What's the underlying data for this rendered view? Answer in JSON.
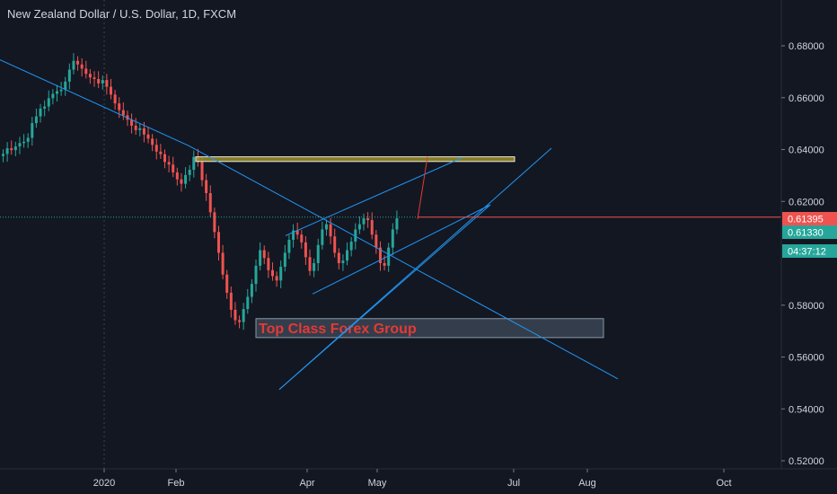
{
  "chart_title": "New Zealand Dollar / U.S. Dollar, 1D, FXCM",
  "chart_data": {
    "type": "candlestick",
    "symbol": "New Zealand Dollar / U.S. Dollar",
    "interval": "1D",
    "source": "FXCM",
    "y_ticks": [
      "0.68000",
      "0.66000",
      "0.64000",
      "0.62000",
      "0.58000",
      "0.56000",
      "0.54000",
      "0.52000"
    ],
    "x_ticks": [
      "2020",
      "Feb",
      "Apr",
      "May",
      "Jul",
      "Aug",
      "Oct"
    ],
    "ylim": [
      0.5165,
      0.6935
    ],
    "price_tags": [
      {
        "text": "0.61395",
        "value": 0.61395,
        "color": "#ef5350"
      },
      {
        "text": "0.61330",
        "value": 0.6133,
        "color": "#26a69a"
      },
      {
        "text": "04:37:12",
        "value": 0.6103,
        "color": "#26a69a"
      }
    ],
    "last_price": 0.61395,
    "resistance_zone": {
      "low": 0.6354,
      "high": 0.6372,
      "color": "#9e9122"
    },
    "support_zone": {
      "low": 0.5675,
      "high": 0.5748,
      "label": "Top Class Forex Group"
    },
    "price_path": [
      0.6383,
      0.6405,
      0.6398,
      0.6412,
      0.6425,
      0.643,
      0.6445,
      0.6502,
      0.6528,
      0.6558,
      0.6566,
      0.6598,
      0.6615,
      0.6625,
      0.6631,
      0.6662,
      0.6708,
      0.6742,
      0.6728,
      0.6712,
      0.6692,
      0.6678,
      0.6672,
      0.6655,
      0.6668,
      0.6642,
      0.6612,
      0.6578,
      0.6552,
      0.6532,
      0.6515,
      0.6492,
      0.6475,
      0.6482,
      0.6458,
      0.6442,
      0.6418,
      0.6392,
      0.6382,
      0.6352,
      0.6342,
      0.6312,
      0.6285,
      0.6268,
      0.6302,
      0.6322,
      0.6372,
      0.6352,
      0.6282,
      0.6232,
      0.6158,
      0.6082,
      0.6002,
      0.5918,
      0.5848,
      0.5782,
      0.5742,
      0.5735,
      0.5785,
      0.5832,
      0.5882,
      0.5952,
      0.6012,
      0.5982,
      0.5935,
      0.5912,
      0.5895,
      0.5948,
      0.6002,
      0.6052,
      0.6088,
      0.6072,
      0.6042,
      0.5985,
      0.5932,
      0.5962,
      0.6032,
      0.6092,
      0.6112,
      0.6065,
      0.6002,
      0.5962,
      0.5972,
      0.6012,
      0.6045,
      0.6092,
      0.6112,
      0.6135,
      0.6128,
      0.6072,
      0.6022,
      0.5962,
      0.5952,
      0.6022,
      0.6092,
      0.6135
    ],
    "trendlines": [
      {
        "from": [
          0,
          0.6746
        ],
        "to": [
          210,
          0.6415
        ],
        "color": "#2196f3"
      },
      {
        "from": [
          210,
          0.6415
        ],
        "to": [
          688,
          0.5516
        ],
        "color": "#2196f3"
      },
      {
        "from": [
          311,
          0.5475
        ],
        "to": [
          546,
          0.6187
        ],
        "color": "#2196f3"
      },
      {
        "from": [
          311,
          0.5475
        ],
        "to": [
          614,
          0.6405
        ],
        "color": "#2196f3"
      },
      {
        "from": [
          318,
          0.6068
        ],
        "to": [
          515,
          0.6369
        ],
        "color": "#2196f3"
      },
      {
        "from": [
          348,
          0.5843
        ],
        "to": [
          546,
          0.6187
        ],
        "color": "#2196f3"
      }
    ],
    "projection": {
      "from": [
        465,
        0.6132
      ],
      "to": [
        476,
        0.6372
      ],
      "color": "#e53935"
    },
    "grid": false
  }
}
